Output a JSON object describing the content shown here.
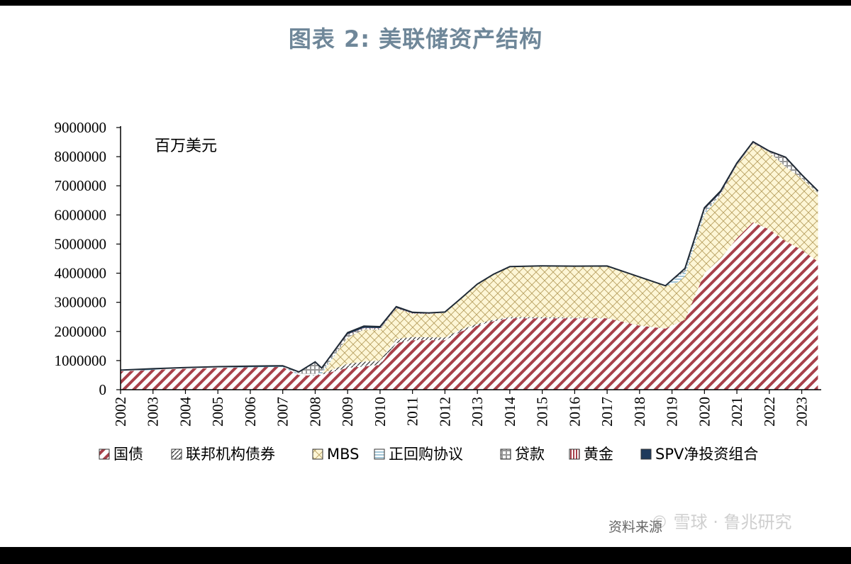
{
  "title": "图表 2:  美联储资产结构",
  "source": "资料来源",
  "watermark": "© 雪球 · 鲁兆研究",
  "chart_data": {
    "type": "area",
    "stacked": true,
    "title": "图表 2:  美联储资产结构",
    "unit_label": "百万美元",
    "x": [
      2002,
      2003,
      2004,
      2005,
      2006,
      2007,
      2007.5,
      2008,
      2008.2,
      2009,
      2009.5,
      2010,
      2010.5,
      2011,
      2011.5,
      2012,
      2012.5,
      2013,
      2013.5,
      2014,
      2015,
      2016,
      2017,
      2018,
      2018.8,
      2019.2,
      2019.4,
      2020,
      2020.5,
      2021,
      2021.5,
      2022,
      2022.5,
      2023,
      2023.5
    ],
    "x_ticks": [
      "2002",
      "2003",
      "2004",
      "2005",
      "2006",
      "2007",
      "2008",
      "2009",
      "2010",
      "2011",
      "2012",
      "2013",
      "2014",
      "2015",
      "2016",
      "2017",
      "2018",
      "2019",
      "2020",
      "2021",
      "2022",
      "2023"
    ],
    "y_ticks": [
      "0",
      "1000000",
      "2000000",
      "3000000",
      "4000000",
      "5000000",
      "6000000",
      "7000000",
      "8000000",
      "9000000"
    ],
    "ylim": [
      0,
      9000000
    ],
    "xlim": [
      2002,
      2023.6
    ],
    "legend_position": "bottom",
    "series": [
      {
        "name": "国债",
        "color": "#a8404a",
        "pattern": "diag",
        "values": [
          630000,
          680000,
          720000,
          750000,
          770000,
          780000,
          500000,
          480000,
          520000,
          750000,
          800000,
          850000,
          1600000,
          1700000,
          1700000,
          1700000,
          2000000,
          2200000,
          2350000,
          2450000,
          2450000,
          2450000,
          2450000,
          2200000,
          2100000,
          2300000,
          2400000,
          4000000,
          4500000,
          5200000,
          5750000,
          5500000,
          5100000,
          4800000,
          4400000
        ]
      },
      {
        "name": "联邦机构债券",
        "color": "#333333",
        "pattern": "dash",
        "values": [
          0,
          0,
          0,
          0,
          0,
          0,
          0,
          15000,
          30000,
          140000,
          160000,
          155000,
          140000,
          110000,
          100000,
          90000,
          75000,
          60000,
          48000,
          40000,
          35000,
          25000,
          10000,
          5000,
          3000,
          2500,
          2500,
          2300,
          2300,
          2300,
          2300,
          2300,
          2300,
          2300,
          2300
        ]
      },
      {
        "name": "MBS",
        "color": "#b8a060",
        "pattern": "cross",
        "values": [
          0,
          0,
          0,
          0,
          0,
          0,
          0,
          0,
          0,
          900000,
          1100000,
          1050000,
          1050000,
          800000,
          800000,
          850000,
          1050000,
          1350000,
          1550000,
          1720000,
          1750000,
          1750000,
          1770000,
          1650000,
          1450000,
          1400000,
          1500000,
          2000000,
          2200000,
          2500000,
          2700000,
          2650000,
          2550000,
          2450000,
          2350000
        ]
      },
      {
        "name": "正回购协议",
        "color": "#4a8fb0",
        "pattern": "hline",
        "values": [
          30000,
          30000,
          30000,
          30000,
          30000,
          30000,
          50000,
          50000,
          80000,
          0,
          0,
          0,
          0,
          0,
          0,
          0,
          0,
          0,
          0,
          0,
          0,
          0,
          0,
          0,
          0,
          200000,
          150000,
          100000,
          0,
          0,
          0,
          0,
          0,
          0,
          0
        ]
      },
      {
        "name": "贷款",
        "color": "#555555",
        "pattern": "box",
        "values": [
          0,
          0,
          0,
          0,
          0,
          0,
          50000,
          400000,
          100000,
          100000,
          50000,
          50000,
          10000,
          5000,
          5000,
          5000,
          5000,
          5000,
          5000,
          5000,
          5000,
          5000,
          5000,
          5000,
          5000,
          50000,
          100000,
          80000,
          50000,
          20000,
          20000,
          10000,
          300000,
          100000,
          50000
        ]
      },
      {
        "name": "黄金",
        "color": "#a8404a",
        "pattern": "vline",
        "values": [
          11000,
          11000,
          11000,
          11000,
          11000,
          11000,
          11000,
          11000,
          11000,
          11000,
          11000,
          11000,
          11000,
          11000,
          11000,
          11000,
          11000,
          11000,
          11000,
          11000,
          11000,
          11000,
          11000,
          11000,
          11000,
          11000,
          11000,
          11000,
          11000,
          11000,
          11000,
          11000,
          11000,
          11000,
          11000
        ]
      },
      {
        "name": "SPV净投资组合",
        "color": "#1f3a5c",
        "pattern": "solid",
        "values": [
          0,
          0,
          0,
          0,
          0,
          0,
          0,
          0,
          0,
          60000,
          60000,
          50000,
          40000,
          30000,
          20000,
          10000,
          0,
          0,
          0,
          0,
          0,
          0,
          0,
          0,
          0,
          0,
          0,
          50000,
          60000,
          50000,
          30000,
          20000,
          20000,
          15000,
          10000
        ]
      }
    ]
  }
}
